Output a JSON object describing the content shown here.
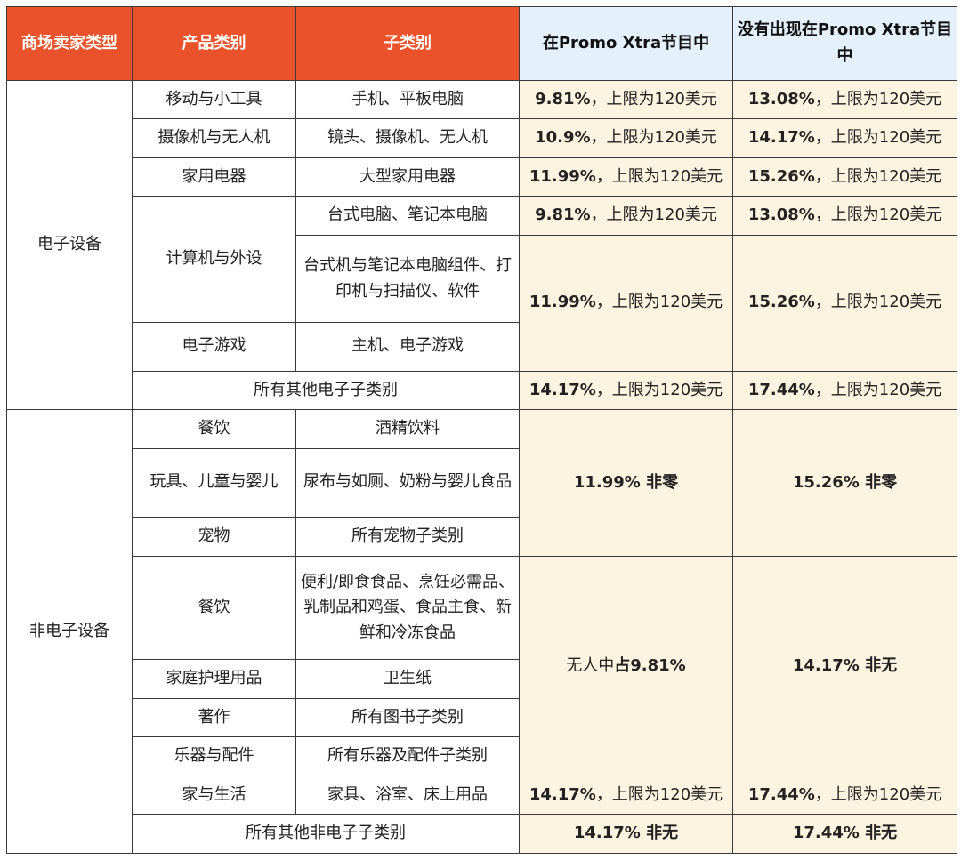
{
  "header": {
    "seller_type": "商场卖家类型",
    "product_category": "产品类别",
    "subcategory": "子类别",
    "in_promo": "在Promo Xtra节目中",
    "not_in_promo": "没有出现在Promo Xtra节目中"
  },
  "electronics": {
    "label": "电子设备",
    "mobile": {
      "category": "移动与小工具",
      "sub": "手机、平板电脑",
      "in_pct": "9.81%",
      "in_rest": "，上限为120美元",
      "out_pct": "13.08%",
      "out_rest": "，上限为120美元"
    },
    "camera": {
      "category": "摄像机与无人机",
      "sub": "镜头、摄像机、无人机",
      "in_pct": "10.9%",
      "in_rest": "，上限为120美元",
      "out_pct": "14.17%",
      "out_rest": "，上限为120美元"
    },
    "appliance": {
      "category": "家用电器",
      "sub": "大型家用电器",
      "in_pct": "11.99%",
      "in_rest": "，上限为120美元",
      "out_pct": "15.26%",
      "out_rest": "，上限为120美元"
    },
    "computer": {
      "category": "计算机与外设",
      "sub1": "台式电脑、笔记本电脑",
      "in1_pct": "9.81%",
      "in1_rest": "，上限为120美元",
      "out1_pct": "13.08%",
      "out1_rest": "，上限为120美元",
      "sub2": "台式机与笔记本电脑组件、打印机与扫描仪、软件",
      "in2_pct": "11.99%",
      "in2_rest": "，上限为120美元",
      "out2_pct": "15.26%",
      "out2_rest": "，上限为120美元"
    },
    "gaming": {
      "category": "电子游戏",
      "sub": "主机、电子游戏"
    },
    "other": {
      "label": "所有其他电子子类别",
      "in_pct": "14.17%",
      "in_rest": "，上限为120美元",
      "out_pct": "17.44%",
      "out_rest": "，上限为120美元"
    }
  },
  "non_electronics": {
    "label": "非电子设备",
    "group1": {
      "in": "11.99% 非零",
      "out": "15.26% 非零",
      "rows": [
        {
          "category": "餐饮",
          "sub": "酒精饮料"
        },
        {
          "category": "玩具、儿童与婴儿",
          "sub": "尿布与如厕、奶粉与婴儿食品"
        },
        {
          "category": "宠物",
          "sub": "所有宠物子类别"
        }
      ]
    },
    "group2": {
      "in_prefix": "无人中",
      "in_bold": "占9.81%",
      "out": "14.17% 非无",
      "rows": [
        {
          "category": "餐饮",
          "sub": "便利/即食食品、烹饪必需品、乳制品和鸡蛋、食品主食、新鲜和冷冻食品"
        },
        {
          "category": "家庭护理用品",
          "sub": "卫生纸"
        },
        {
          "category": "著作",
          "sub": "所有图书子类别"
        },
        {
          "category": "乐器与配件",
          "sub": "所有乐器及配件子类别"
        }
      ]
    },
    "home": {
      "category": "家与生活",
      "sub": "家具、浴室、床上用品",
      "in_pct": "14.17%",
      "in_rest": "，上限为120美元",
      "out_pct": "17.44%",
      "out_rest": "，上限为120美元"
    },
    "other": {
      "label": "所有其他非电子子类别",
      "in": "14.17% 非无",
      "out": "17.44% 非无"
    }
  },
  "colors": {
    "header_orange": "#e9522a",
    "header_blue": "#e4f0fb",
    "fee_cell": "#fdf3e1",
    "border": "#3a3a3a"
  }
}
